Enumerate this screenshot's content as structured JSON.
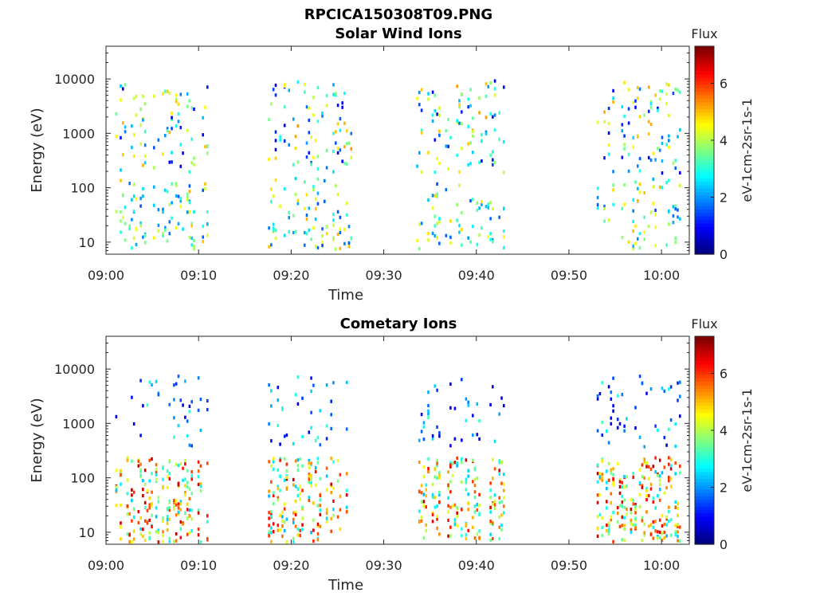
{
  "figure_title": "RPCICA150308T09.PNG",
  "chart_data": [
    {
      "type": "heatmap",
      "title": "Solar Wind Ions",
      "xlabel": "Time",
      "ylabel": "Energy (eV)",
      "x_ticks": [
        "09:00",
        "09:10",
        "09:20",
        "09:30",
        "09:40",
        "09:50",
        "10:00"
      ],
      "x_range_minutes": [
        0,
        63
      ],
      "y_ticks": [
        "10",
        "100",
        "1000",
        "10000"
      ],
      "y_scale": "log",
      "ylim": [
        6,
        40000
      ],
      "colorbar": {
        "title": "Flux",
        "label": "eV-1cm-2sr-1s-1",
        "ticks": [
          "0",
          "2",
          "4",
          "6"
        ],
        "range": [
          0,
          7.3
        ],
        "colormap": "jet"
      },
      "active_intervals_minutes": [
        [
          1,
          11
        ],
        [
          17.5,
          26.5
        ],
        [
          33.5,
          43
        ],
        [
          53,
          62
        ]
      ],
      "grid": false
    },
    {
      "type": "heatmap",
      "title": "Cometary Ions",
      "xlabel": "Time",
      "ylabel": "Energy (eV)",
      "x_ticks": [
        "09:00",
        "09:10",
        "09:20",
        "09:30",
        "09:40",
        "09:50",
        "10:00"
      ],
      "x_range_minutes": [
        0,
        63
      ],
      "y_ticks": [
        "10",
        "100",
        "1000",
        "10000"
      ],
      "y_scale": "log",
      "ylim": [
        6,
        40000
      ],
      "colorbar": {
        "title": "Flux",
        "label": "eV-1cm-2sr-1s-1",
        "ticks": [
          "0",
          "2",
          "4",
          "6"
        ],
        "range": [
          0,
          7.3
        ],
        "colormap": "jet"
      },
      "active_intervals_minutes": [
        [
          1,
          11
        ],
        [
          17.5,
          26.5
        ],
        [
          33.5,
          43
        ],
        [
          53,
          62
        ]
      ],
      "grid": false
    }
  ]
}
